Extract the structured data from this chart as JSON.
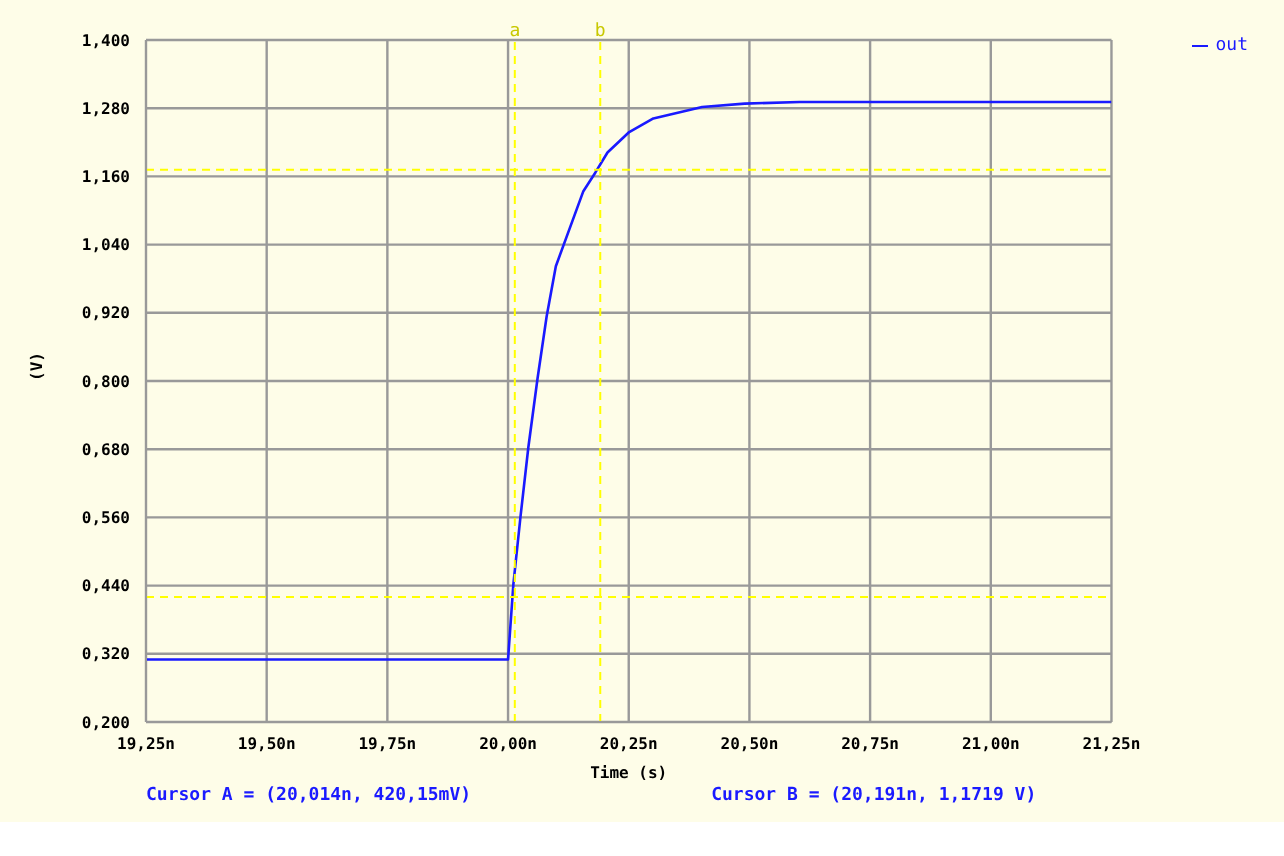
{
  "chart_data": {
    "type": "line",
    "xlabel": "Time (s)",
    "ylabel": "(V)",
    "x": [
      19.25,
      20.0,
      20.011,
      20.026,
      20.042,
      20.061,
      20.08,
      20.099,
      20.156,
      20.181,
      20.206,
      20.251,
      20.301,
      20.402,
      20.49,
      20.604,
      21.25
    ],
    "series": [
      {
        "name": "out",
        "color": "#1a1aff",
        "values": [
          0.31,
          0.31,
          0.442,
          0.563,
          0.683,
          0.804,
          0.914,
          1.002,
          1.134,
          1.167,
          1.202,
          1.238,
          1.262,
          1.282,
          1.288,
          1.291,
          1.291
        ]
      }
    ],
    "xlim": [
      19.25,
      21.25
    ],
    "xticks": [
      {
        "value": 19.25,
        "label": "19,25n"
      },
      {
        "value": 19.5,
        "label": "19,50n"
      },
      {
        "value": 19.75,
        "label": "19,75n"
      },
      {
        "value": 20.0,
        "label": "20,00n"
      },
      {
        "value": 20.25,
        "label": "20,25n"
      },
      {
        "value": 20.5,
        "label": "20,50n"
      },
      {
        "value": 20.75,
        "label": "20,75n"
      },
      {
        "value": 21.0,
        "label": "21,00n"
      },
      {
        "value": 21.25,
        "label": "21,25n"
      }
    ],
    "ylim": [
      0.2,
      1.4
    ],
    "yticks": [
      {
        "value": 0.2,
        "label": "0,200"
      },
      {
        "value": 0.32,
        "label": "0,320"
      },
      {
        "value": 0.44,
        "label": "0,440"
      },
      {
        "value": 0.56,
        "label": "0,560"
      },
      {
        "value": 0.68,
        "label": "0,680"
      },
      {
        "value": 0.8,
        "label": "0,800"
      },
      {
        "value": 0.92,
        "label": "0,920"
      },
      {
        "value": 1.04,
        "label": "1,040"
      },
      {
        "value": 1.16,
        "label": "1,160"
      },
      {
        "value": 1.28,
        "label": "1,280"
      },
      {
        "value": 1.4,
        "label": "1,400"
      }
    ],
    "grid": true,
    "legend": "top right",
    "marker": "none",
    "line_style": "solid",
    "ref_lines": [
      {
        "axis": "x",
        "value": 20.014,
        "label": "a",
        "color": "#ffff00",
        "line_style": "dashed"
      },
      {
        "axis": "x",
        "value": 20.191,
        "label": "b",
        "color": "#ffff00",
        "line_style": "dashed"
      },
      {
        "axis": "y",
        "value": 0.42015,
        "color": "#ffff00",
        "line_style": "dashed"
      },
      {
        "axis": "y",
        "value": 1.1719,
        "color": "#ffff00",
        "line_style": "dashed"
      }
    ],
    "annotations": [
      "Cursor A = (20,014n, 420,15mV)",
      "Cursor B = (20,191n, 1,1719 V)"
    ]
  }
}
